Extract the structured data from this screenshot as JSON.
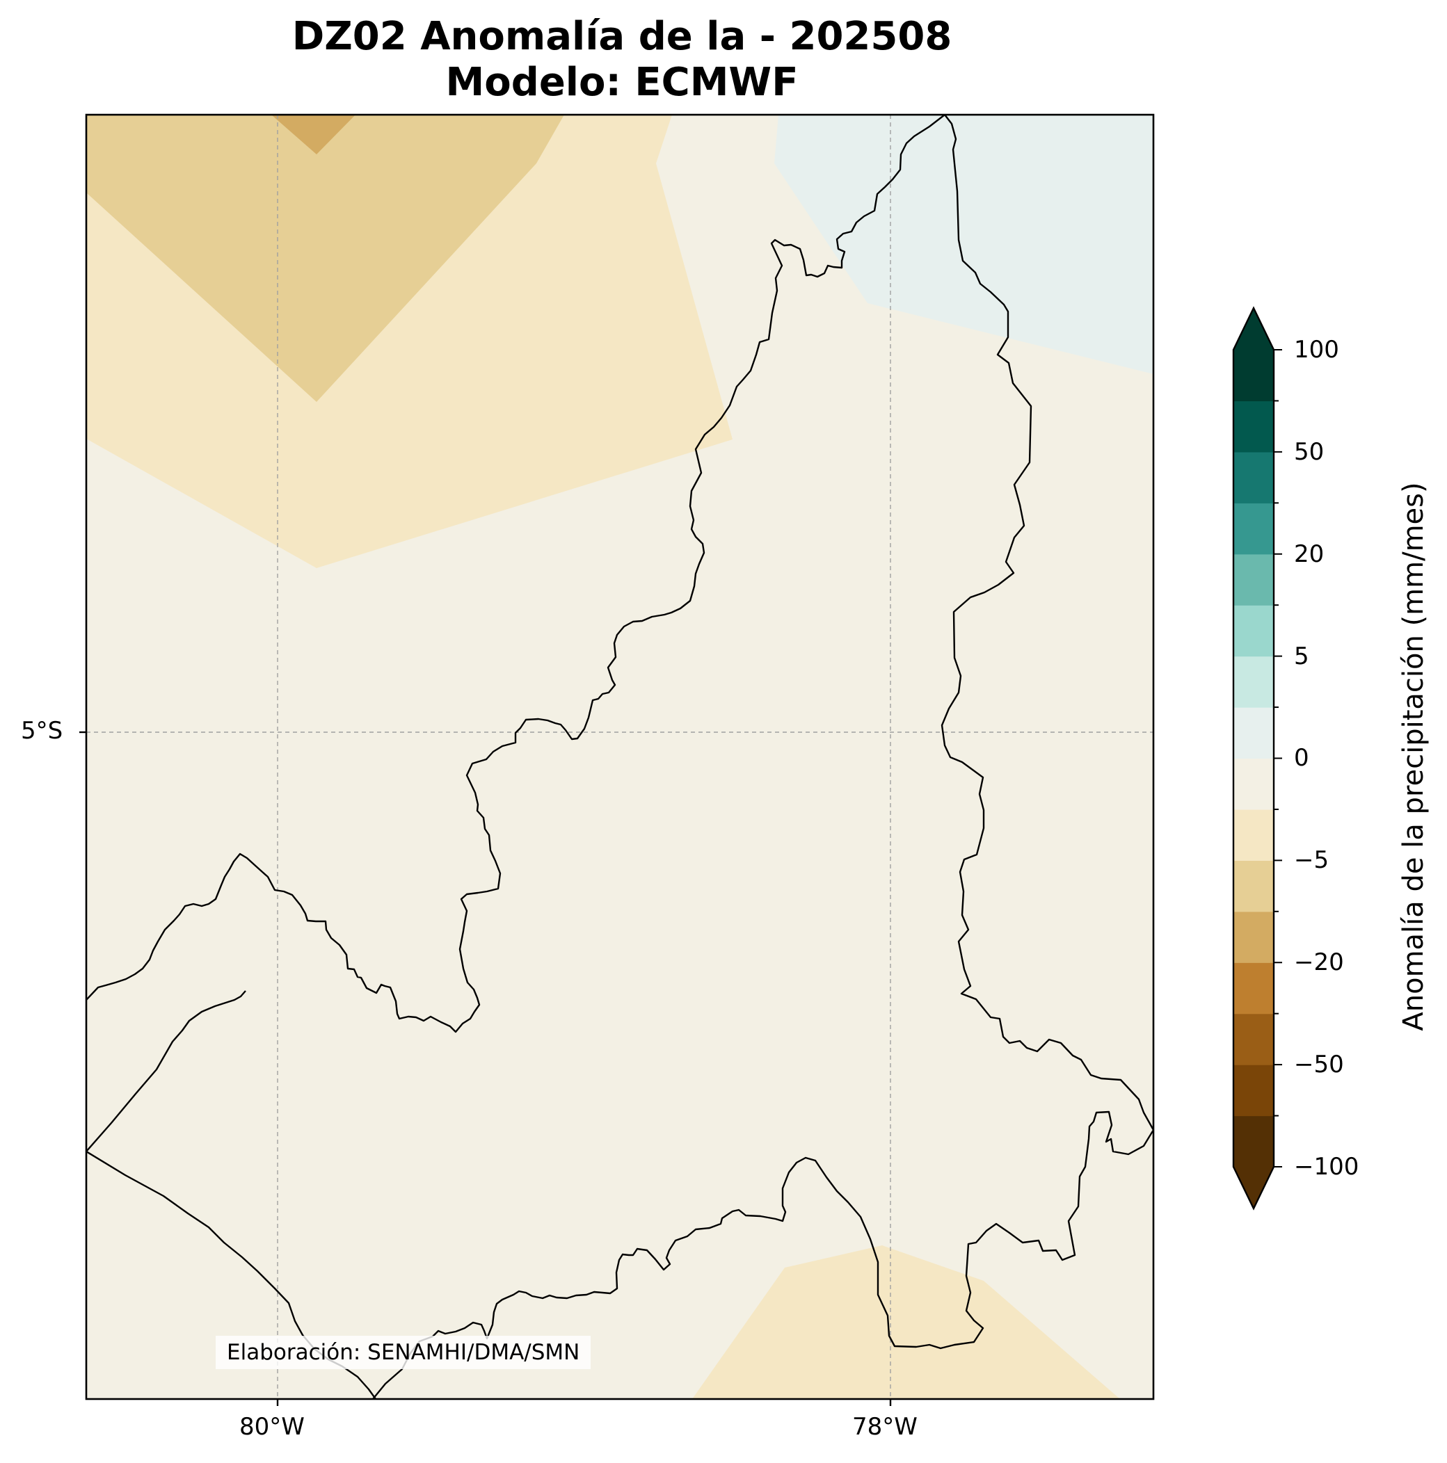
{
  "title": {
    "line1": "DZ02 Anomalía de la - 202508",
    "line2": "Modelo: ECMWF"
  },
  "axes": {
    "lat_labels": [
      {
        "value": -5,
        "label": "5°S"
      }
    ],
    "lon_labels": [
      {
        "value": -80,
        "label": "80°W"
      },
      {
        "value": -78,
        "label": "78°W"
      }
    ],
    "extent": {
      "lon_min": -80.63,
      "lon_max": -77.14,
      "lat_min": -6.5,
      "lat_max": -2.5
    },
    "gridlines": true
  },
  "colorbar": {
    "label": "Anomalía de la precipitación (mm/mes)",
    "tick_labels": [
      "100",
      "50",
      "20",
      "5",
      "0",
      "−5",
      "−20",
      "−50",
      "−100"
    ],
    "levels": [
      -100,
      -75,
      -50,
      -30,
      -20,
      -10,
      -5,
      -2,
      0,
      2,
      5,
      10,
      20,
      30,
      50,
      75,
      100
    ],
    "colors": [
      "#543005",
      "#7a4508",
      "#9a5e16",
      "#be7f2f",
      "#d3ab62",
      "#e6cf95",
      "#f5e7c4",
      "#f3f0e4",
      "#e7f0ee",
      "#c8e9e2",
      "#9ad7cd",
      "#6ab9ad",
      "#369890",
      "#167870",
      "#02594e",
      "#003c30"
    ],
    "extend": "both",
    "extend_low_color": "#543005",
    "extend_high_color": "#003c30"
  },
  "map": {
    "background_color": "#f3f0e4",
    "anomaly_fill_colors": {
      "strong_dry": "#d3ab62",
      "moderate_dry": "#e6cf95",
      "weak_dry": "#f5e7c4",
      "near_zero": "#f3f0e4",
      "weak_wet": "#e7f0ee"
    },
    "boundary_color": "#000000"
  },
  "credit": "Elaboración: SENAMHI/DMA/SMN"
}
